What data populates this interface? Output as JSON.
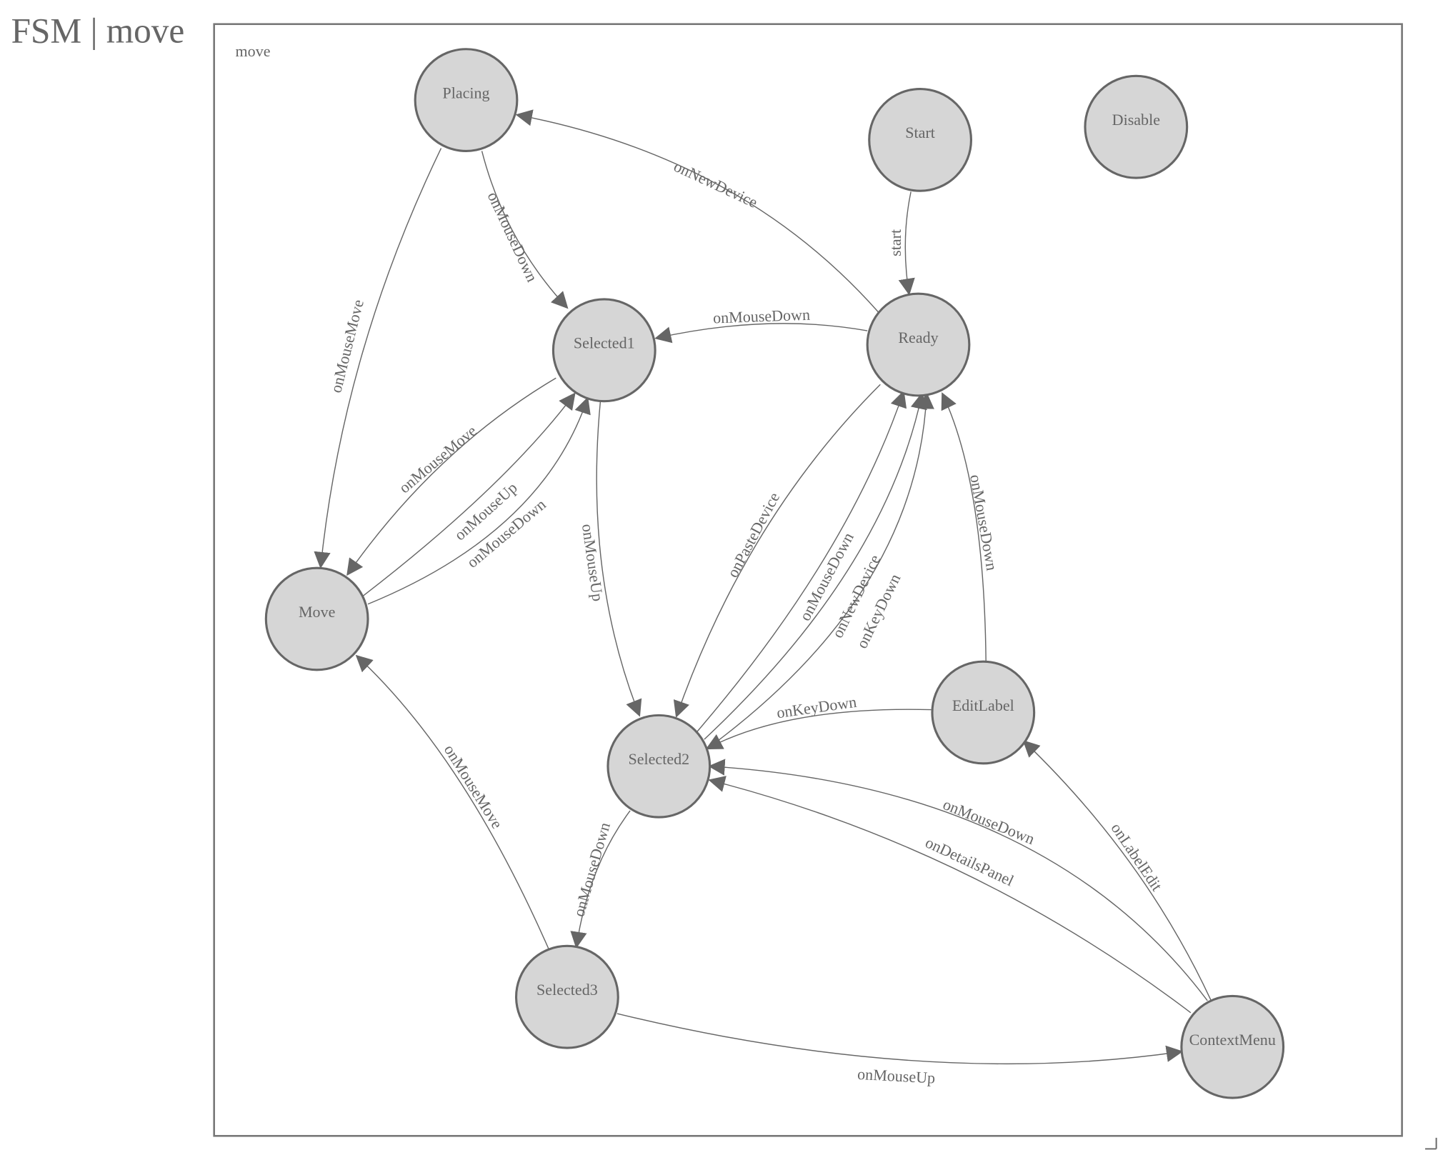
{
  "title": "FSM | move",
  "machine": {
    "name": "move"
  },
  "colors": {
    "node_fill": "#d6d6d6",
    "stroke": "#666666",
    "text": "#666666"
  },
  "states": [
    {
      "id": "Placing",
      "label": "Placing"
    },
    {
      "id": "Start",
      "label": "Start"
    },
    {
      "id": "Disable",
      "label": "Disable"
    },
    {
      "id": "Selected1",
      "label": "Selected1"
    },
    {
      "id": "Ready",
      "label": "Ready"
    },
    {
      "id": "Move",
      "label": "Move"
    },
    {
      "id": "EditLabel",
      "label": "EditLabel"
    },
    {
      "id": "Selected2",
      "label": "Selected2"
    },
    {
      "id": "Selected3",
      "label": "Selected3"
    },
    {
      "id": "ContextMenu",
      "label": "ContextMenu"
    }
  ],
  "transitions": [
    {
      "from": "Ready",
      "to": "Placing",
      "label": "onNewDevice"
    },
    {
      "from": "Placing",
      "to": "Selected1",
      "label": "onMouseDown"
    },
    {
      "from": "Placing",
      "to": "Move",
      "label": "onMouseMove"
    },
    {
      "from": "Start",
      "to": "Ready",
      "label": "start"
    },
    {
      "from": "Ready",
      "to": "Selected1",
      "label": "onMouseDown"
    },
    {
      "from": "Selected1",
      "to": "Move",
      "label": "onMouseMove"
    },
    {
      "from": "Move",
      "to": "Selected1",
      "label": "onMouseUp"
    },
    {
      "from": "Move",
      "to": "Selected1",
      "label": "onMouseDown"
    },
    {
      "from": "Selected1",
      "to": "Selected2",
      "label": "onMouseUp"
    },
    {
      "from": "Ready",
      "to": "Selected2",
      "label": "onPasteDevice"
    },
    {
      "from": "Selected2",
      "to": "Ready",
      "label": "onMouseDown"
    },
    {
      "from": "Selected2",
      "to": "Ready",
      "label": "onNewDevice"
    },
    {
      "from": "Selected2",
      "to": "Ready",
      "label": "onKeyDown"
    },
    {
      "from": "EditLabel",
      "to": "Ready",
      "label": "onMouseDown"
    },
    {
      "from": "EditLabel",
      "to": "Selected2",
      "label": "onKeyDown"
    },
    {
      "from": "ContextMenu",
      "to": "Selected2",
      "label": "onMouseDown"
    },
    {
      "from": "ContextMenu",
      "to": "Selected2",
      "label": "onDetailsPanel"
    },
    {
      "from": "ContextMenu",
      "to": "EditLabel",
      "label": "onLabelEdit"
    },
    {
      "from": "Selected2",
      "to": "Selected3",
      "label": "onMouseDown"
    },
    {
      "from": "Selected3",
      "to": "Move",
      "label": "onMouseMove"
    },
    {
      "from": "Selected3",
      "to": "ContextMenu",
      "label": "onMouseUp"
    }
  ]
}
